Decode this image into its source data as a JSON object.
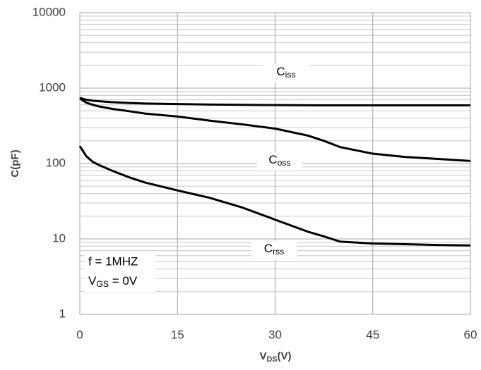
{
  "chart_data": {
    "type": "line",
    "x_label": "VDS(V)",
    "y_label": "C(pF)",
    "x": [
      0,
      1,
      2,
      3,
      5,
      7.5,
      10,
      15,
      20,
      25,
      30,
      35,
      37.5,
      40,
      45,
      50,
      55,
      60
    ],
    "series": [
      {
        "name": "Ciss",
        "color": "#000000",
        "values": [
          740,
          700,
          680,
          670,
          650,
          635,
          625,
          615,
          605,
          600,
          595,
          592,
          591,
          590,
          590,
          590,
          590,
          590
        ]
      },
      {
        "name": "Coss",
        "color": "#000000",
        "values": [
          730,
          640,
          600,
          570,
          530,
          495,
          460,
          420,
          370,
          330,
          290,
          235,
          200,
          165,
          135,
          122,
          115,
          108
        ]
      },
      {
        "name": "Crss",
        "color": "#000000",
        "values": [
          170,
          125,
          105,
          95,
          80,
          66,
          56,
          44,
          35,
          26,
          18,
          12.5,
          10.8,
          9.2,
          8.7,
          8.5,
          8.3,
          8.2
        ]
      }
    ],
    "annotations": [
      "f = 1MHZ",
      "VGS = 0V"
    ],
    "xlim": [
      0,
      60
    ],
    "xticks": [
      0,
      15,
      30,
      45,
      60
    ],
    "ylim": [
      1,
      10000
    ],
    "yticks": [
      1,
      10,
      100,
      1000,
      10000
    ],
    "yscale": "log",
    "grid": true
  }
}
